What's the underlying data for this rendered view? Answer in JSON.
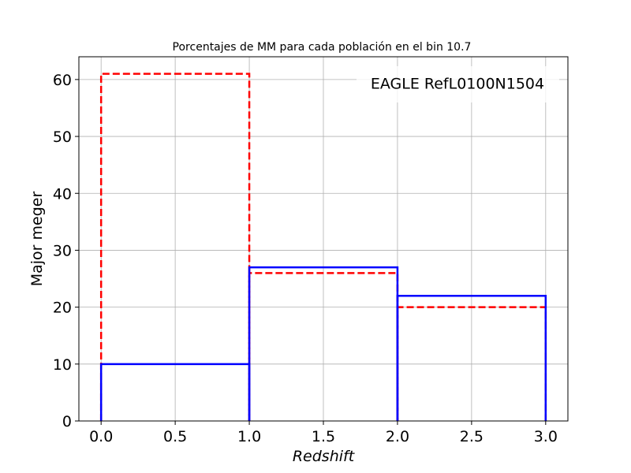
{
  "chart_data": {
    "type": "bar",
    "title": "Porcentajes de MM para cada población en el bin 10.7",
    "xlabel": "Redshift",
    "ylabel": "Major meger",
    "annotation": "EAGLE RefL0100N1504",
    "xlim": [
      -0.15,
      3.15
    ],
    "ylim": [
      0,
      64
    ],
    "grid": true,
    "xticks": [
      "0.0",
      "0.5",
      "1.0",
      "1.5",
      "2.0",
      "2.5",
      "3.0"
    ],
    "yticks": [
      "0",
      "10",
      "20",
      "30",
      "40",
      "50",
      "60"
    ],
    "bin_edges": [
      0,
      1,
      2,
      3
    ],
    "series": [
      {
        "style": "dashed",
        "color": "#ff0000",
        "values": [
          61,
          26,
          20
        ]
      },
      {
        "style": "solid",
        "color": "#0000ff",
        "values": [
          10,
          27,
          22
        ]
      }
    ]
  }
}
